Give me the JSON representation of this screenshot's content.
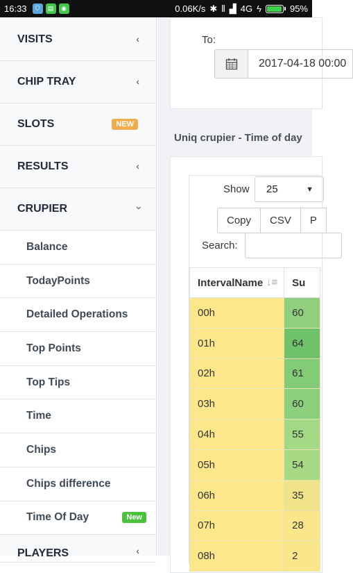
{
  "status_bar": {
    "time": "16:33",
    "network_speed": "0.06K/s",
    "network_type": "4G",
    "battery": "95%",
    "battery_level": 0.95,
    "icons": [
      "vpn-icon",
      "storage-icon",
      "android-icon",
      "bluetooth-icon",
      "vibrate-icon",
      "signal-icon",
      "charging-icon"
    ]
  },
  "sidebar": {
    "items": [
      {
        "label": "VISITS",
        "icon": "chevron-left-icon"
      },
      {
        "label": "CHIP TRAY",
        "icon": "chevron-left-icon"
      },
      {
        "label": "SLOTS",
        "badge": "NEW"
      },
      {
        "label": "RESULTS",
        "icon": "chevron-left-icon"
      },
      {
        "label": "CRUPIER",
        "icon": "chevron-down-icon"
      }
    ],
    "crupier_submenu": [
      {
        "label": "Balance"
      },
      {
        "label": "TodayPoints"
      },
      {
        "label": "Detailed Operations"
      },
      {
        "label": "Top Points"
      },
      {
        "label": "Top Tips"
      },
      {
        "label": "Time"
      },
      {
        "label": "Chips"
      },
      {
        "label": "Chips difference"
      },
      {
        "label": "Time Of Day",
        "badge": "New"
      }
    ],
    "next_item": {
      "label": "PLAYERS",
      "icon": "chevron-left-icon"
    }
  },
  "filter": {
    "to_label": "To:",
    "date_value": "2017-04-18 00:00"
  },
  "section_title": "Uniq crupier - Time of day",
  "datatable": {
    "show_label": "Show",
    "page_size": "25",
    "buttons": [
      "Copy",
      "CSV",
      "P"
    ],
    "search_label": "Search:",
    "columns": [
      "IntervalName",
      "Su"
    ],
    "rows": [
      {
        "interval": "00h",
        "value": "60",
        "color": "#8fcf7e"
      },
      {
        "interval": "01h",
        "value": "64",
        "color": "#6fc26a"
      },
      {
        "interval": "02h",
        "value": "61",
        "color": "#84cb78"
      },
      {
        "interval": "03h",
        "value": "60",
        "color": "#8ccf7c"
      },
      {
        "interval": "04h",
        "value": "55",
        "color": "#a3d884"
      },
      {
        "interval": "05h",
        "value": "54",
        "color": "#a8da86"
      },
      {
        "interval": "06h",
        "value": "35",
        "color": "#f0e38a"
      },
      {
        "interval": "07h",
        "value": "28",
        "color": "#fbe78b"
      },
      {
        "interval": "08h",
        "value": "2",
        "color": "#fbe78b"
      }
    ]
  },
  "colors": {
    "accent_orange": "#f0ad4e",
    "accent_green": "#4cc13c",
    "interval_column": "#fce88b"
  }
}
